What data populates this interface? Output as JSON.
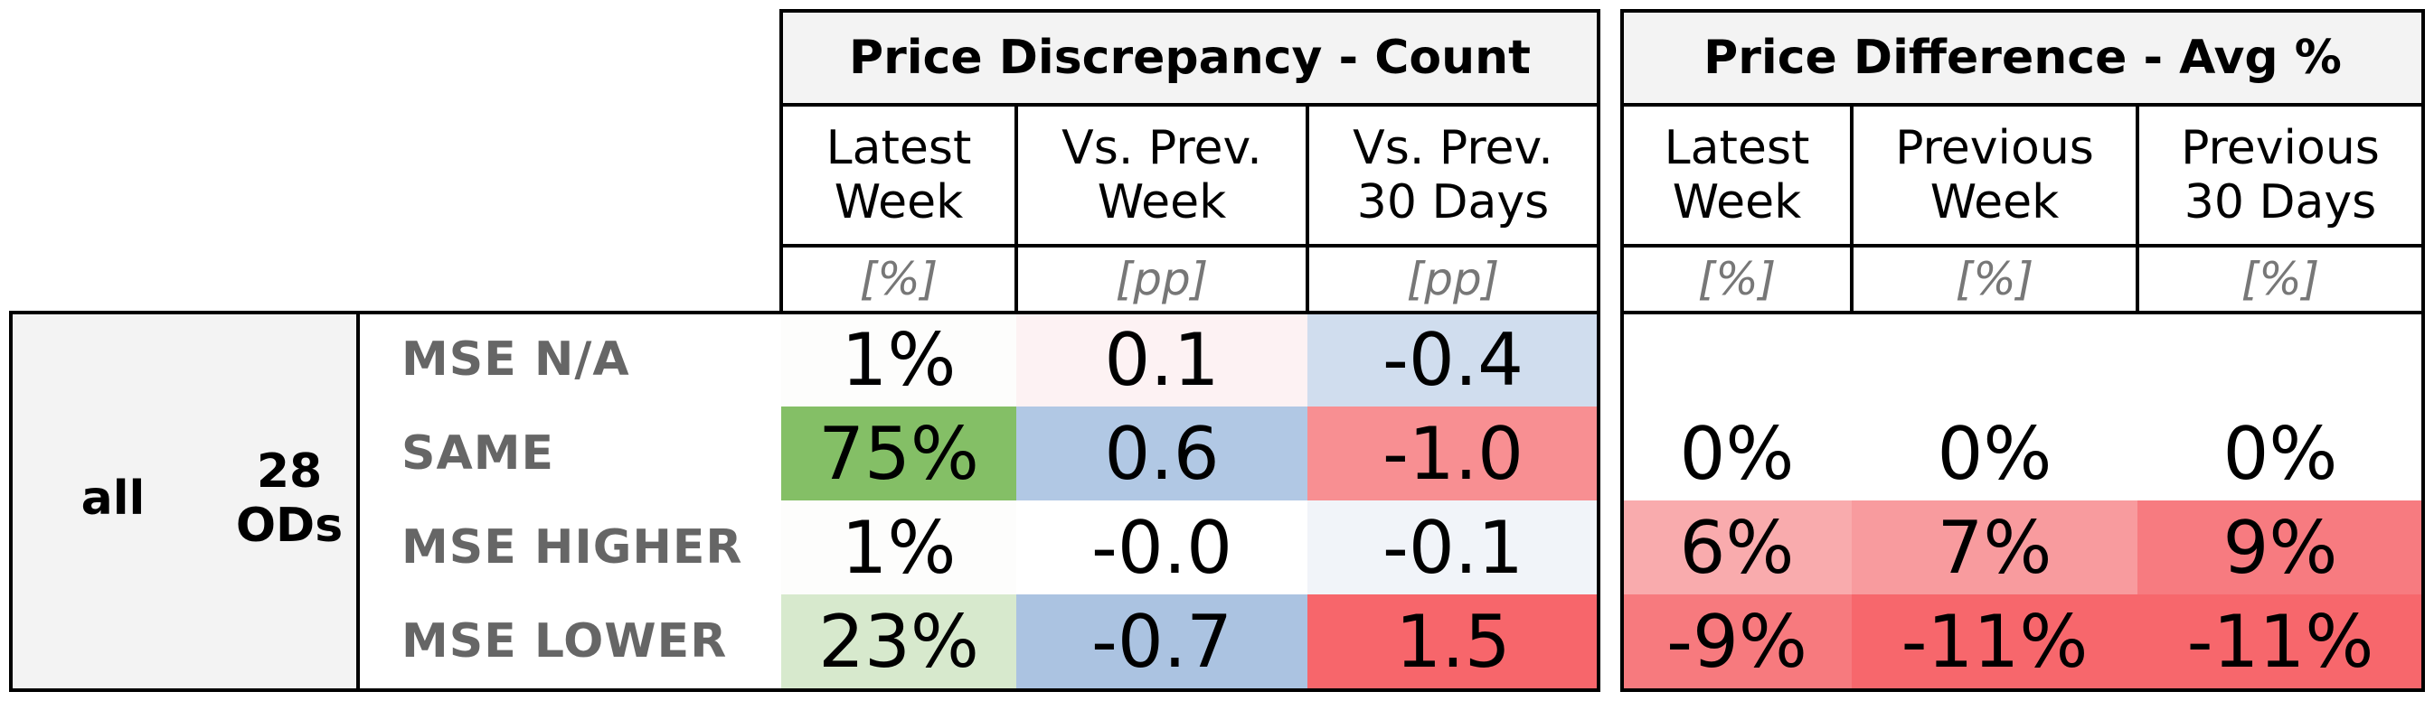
{
  "group_titles": {
    "count": "Price Discrepancy - Count",
    "avg": "Price Difference - Avg %"
  },
  "column_headers": {
    "count": [
      {
        "line1": "Latest",
        "line2": "Week",
        "unit": "[%]"
      },
      {
        "line1": "Vs. Prev.",
        "line2": "Week",
        "unit": "[pp]"
      },
      {
        "line1": "Vs. Prev.",
        "line2": "30 Days",
        "unit": "[pp]"
      }
    ],
    "avg": [
      {
        "line1": "Latest",
        "line2": "Week",
        "unit": "[%]"
      },
      {
        "line1": "Previous",
        "line2": "Week",
        "unit": "[%]"
      },
      {
        "line1": "Previous",
        "line2": "30 Days",
        "unit": "[%]"
      }
    ]
  },
  "row_group": {
    "label": "all",
    "ods_count": "28",
    "ods_label": "ODs"
  },
  "rows": [
    {
      "label": "MSE N/A",
      "count": [
        {
          "v": "1%",
          "bg": "#fdfdfc"
        },
        {
          "v": "0.1",
          "bg": "#fdf2f3"
        },
        {
          "v": "-0.4",
          "bg": "#d0ddee"
        }
      ],
      "avg": [
        {
          "v": "",
          "bg": "#ffffff"
        },
        {
          "v": "",
          "bg": "#ffffff"
        },
        {
          "v": "",
          "bg": "#ffffff"
        }
      ]
    },
    {
      "label": "SAME",
      "count": [
        {
          "v": "75%",
          "bg": "#84bf66"
        },
        {
          "v": "0.6",
          "bg": "#b1c8e4"
        },
        {
          "v": "-1.0",
          "bg": "#f88f92"
        }
      ],
      "avg": [
        {
          "v": "0%",
          "bg": "#ffffff"
        },
        {
          "v": "0%",
          "bg": "#ffffff"
        },
        {
          "v": "0%",
          "bg": "#ffffff"
        }
      ]
    },
    {
      "label": "MSE HIGHER",
      "count": [
        {
          "v": "1%",
          "bg": "#fdfdfc"
        },
        {
          "v": "-0.0",
          "bg": "#ffffff"
        },
        {
          "v": "-0.1",
          "bg": "#f1f4f9"
        }
      ],
      "avg": [
        {
          "v": "6%",
          "bg": "#f9abad"
        },
        {
          "v": "7%",
          "bg": "#f89b9e"
        },
        {
          "v": "9%",
          "bg": "#f77b80"
        }
      ]
    },
    {
      "label": "MSE LOWER",
      "count": [
        {
          "v": "23%",
          "bg": "#d7e9cd"
        },
        {
          "v": "-0.7",
          "bg": "#abc3e1"
        },
        {
          "v": "1.5",
          "bg": "#f7666b"
        }
      ],
      "avg": [
        {
          "v": "-9%",
          "bg": "#f77a7e"
        },
        {
          "v": "-11%",
          "bg": "#f7676c"
        },
        {
          "v": "-11%",
          "bg": "#f7676c"
        }
      ]
    }
  ]
}
